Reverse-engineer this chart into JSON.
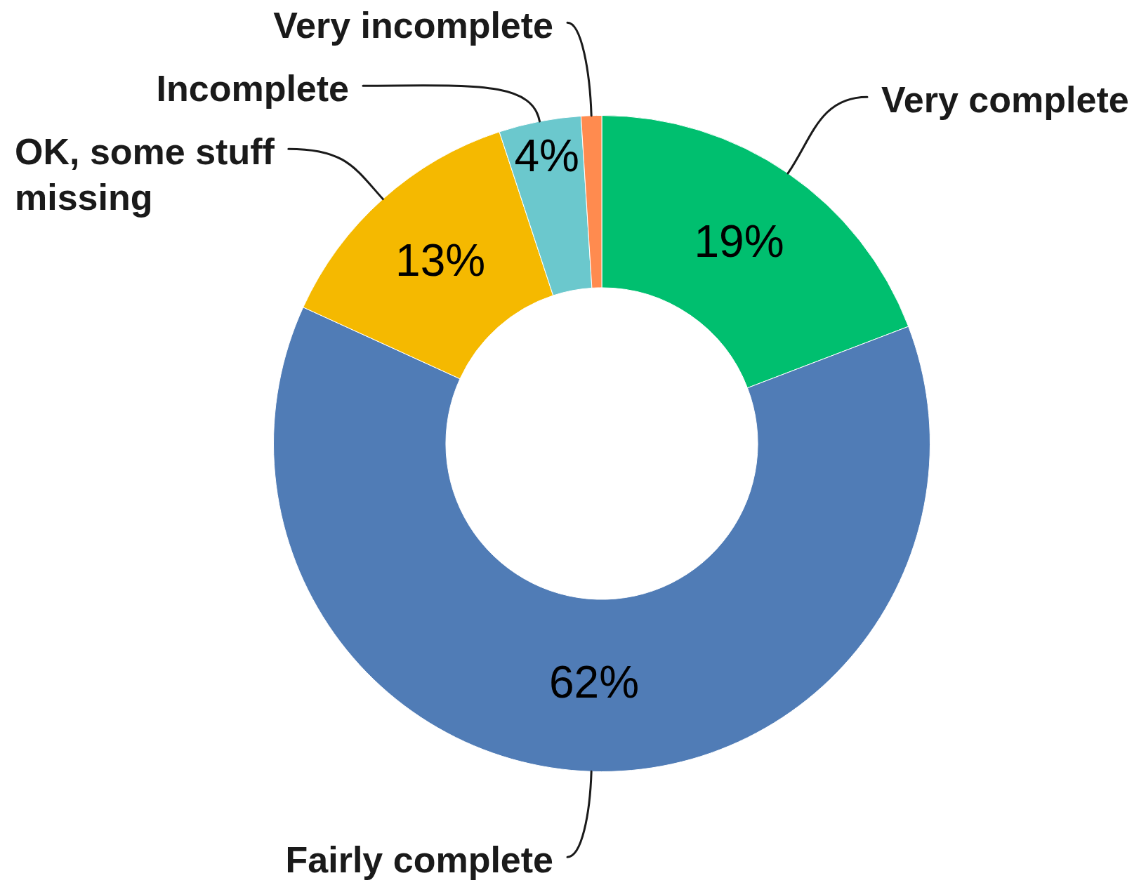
{
  "chart_data": {
    "type": "donut",
    "categories": [
      "Very complete",
      "Fairly complete",
      "OK, some stuff missing",
      "Incomplete",
      "Very incomplete"
    ],
    "values": [
      19,
      62,
      13,
      4,
      1
    ],
    "colors": [
      "#00bf6f",
      "#507cb6",
      "#f5b900",
      "#6bc8cd",
      "#ff8b4f"
    ],
    "value_labels": [
      "19%",
      "62%",
      "13%",
      "4%",
      null
    ]
  }
}
